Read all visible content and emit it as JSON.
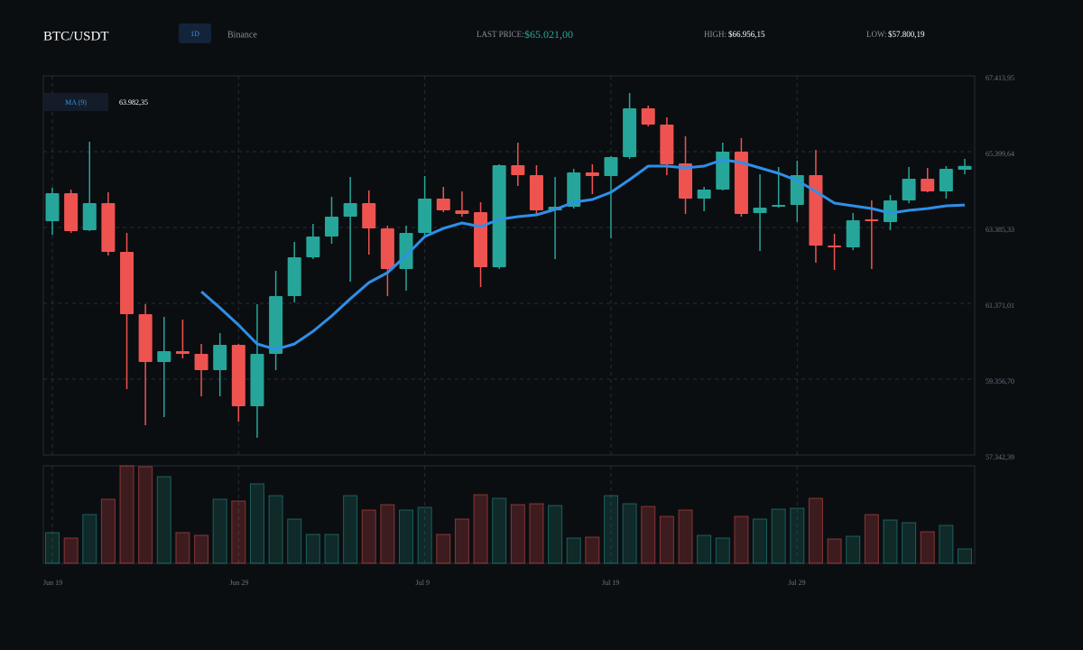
{
  "header": {
    "symbol": "BTC/USDT",
    "interval": "1D",
    "exchange": "Binance",
    "last_price_label": "LAST PRICE:",
    "last_price": "$65.021,00",
    "high_label": "HIGH:",
    "high": "$66.956,15",
    "low_label": "LOW:",
    "low": "$57.800,19"
  },
  "chart_data": {
    "type": "candlestick",
    "categories": [
      "Jun 19",
      null,
      null,
      null,
      null,
      null,
      null,
      null,
      null,
      null,
      "Jun 29",
      null,
      null,
      null,
      null,
      null,
      null,
      null,
      null,
      null,
      "Jul 9",
      null,
      null,
      null,
      null,
      null,
      null,
      null,
      null,
      null,
      "Jul 19",
      null,
      null,
      null,
      null,
      null,
      null,
      null,
      null,
      null,
      "Jul 29",
      null,
      null,
      null,
      null,
      null,
      null,
      null,
      null,
      null
    ],
    "open": [
      63553,
      64296,
      63313,
      64032,
      62738,
      61083,
      59812,
      60100,
      60028,
      59596,
      60268,
      58637,
      60028,
      61563,
      62594,
      63145,
      63673,
      64032,
      63361,
      62282,
      63241,
      64152,
      63841,
      63793,
      62330,
      65040,
      64776,
      63841,
      63937,
      64848,
      64752,
      65255,
      66550,
      66119,
      65088,
      64152,
      64392,
      65399,
      63769,
      63937,
      63985,
      64776,
      62905,
      62857,
      63601,
      63529,
      64104,
      64680,
      64344,
      64920
    ],
    "high": [
      64440,
      64392,
      65663,
      64320,
      63241,
      61347,
      61011,
      60939,
      60292,
      60579,
      60290,
      61347,
      62234,
      63001,
      63481,
      64200,
      64728,
      64368,
      63433,
      63433,
      64752,
      64464,
      64344,
      64056,
      65064,
      65639,
      65040,
      64728,
      64944,
      65064,
      65279,
      66956.15,
      66622,
      66311,
      65807,
      64464,
      65639,
      65759,
      64800,
      64992,
      65160,
      65447,
      63217,
      63769,
      64104,
      64248,
      64992,
      64968,
      65016,
      65208
    ],
    "low": [
      63193,
      63241,
      63290,
      62642,
      59093,
      58133,
      58349,
      59908,
      58901,
      58901,
      58229,
      57800.19,
      59596,
      61395,
      62546,
      62953,
      61946,
      62666,
      61563,
      61706,
      63145,
      63793,
      63673,
      61802,
      62282,
      64488,
      63721,
      62546,
      63889,
      64272,
      63097,
      65208,
      66071,
      64776,
      63745,
      63817,
      64368,
      63673,
      62762,
      63913,
      63529,
      62450,
      62258,
      62786,
      62282,
      63313,
      64032,
      64320,
      64152,
      64800
    ],
    "close": [
      64296,
      63289,
      64032,
      62738,
      61083,
      59812,
      60100,
      60028,
      59596,
      60268,
      58637,
      60028,
      61563,
      62594,
      63145,
      63673,
      64032,
      63361,
      62282,
      63241,
      64152,
      63841,
      63745,
      62330,
      65040,
      64776,
      63841,
      63937,
      64848,
      64752,
      65255,
      66550,
      66119,
      65064,
      64152,
      64392,
      65399,
      63745,
      63913,
      63985,
      64776,
      62905,
      62857,
      63577,
      63553,
      64104,
      64680,
      64344,
      64944,
      65021.0
    ],
    "up_color": "#26a69a",
    "down_color": "#ef5350",
    "ylim": [
      57342.39,
      67413.95
    ],
    "yticks": [
      {
        "value": 67413.95,
        "label": "67.413,95"
      },
      {
        "value": 65399.64,
        "label": "65.399,64"
      },
      {
        "value": 63385.33,
        "label": "63.385,33"
      },
      {
        "value": 61371.01,
        "label": "61.371,01"
      },
      {
        "value": 59356.7,
        "label": "59.356,70"
      },
      {
        "value": 57342.39,
        "label": "57.342,39"
      }
    ],
    "grid": true,
    "series": [
      {
        "name": "MA (9)",
        "color": "#2f8fe8",
        "value_label": "63.982,35",
        "values": [
          null,
          null,
          null,
          null,
          null,
          null,
          null,
          null,
          61682,
          61251,
          60795,
          60292,
          60148,
          60292,
          60627,
          61035,
          61491,
          61922,
          62186,
          62642,
          63145,
          63361,
          63505,
          63409,
          63601,
          63673,
          63721,
          63865,
          64056,
          64128,
          64320,
          64656,
          65016,
          65016,
          64968,
          65016,
          65184,
          65112,
          64968,
          64824,
          64632,
          64344,
          64032,
          63961,
          63889,
          63769,
          63841,
          63889,
          63961,
          63982.35
        ]
      }
    ],
    "volume": {
      "values": [
        34,
        28,
        54,
        71,
        108,
        107,
        96,
        34,
        31,
        71,
        69,
        88,
        75,
        49,
        32,
        32,
        75,
        59,
        65,
        59,
        62,
        32,
        49,
        76,
        72,
        65,
        66,
        64,
        28,
        29,
        75,
        66,
        63,
        52,
        59,
        31,
        28,
        52,
        49,
        60,
        61,
        72,
        27,
        30,
        54,
        48,
        45,
        35,
        42,
        16
      ]
    }
  }
}
